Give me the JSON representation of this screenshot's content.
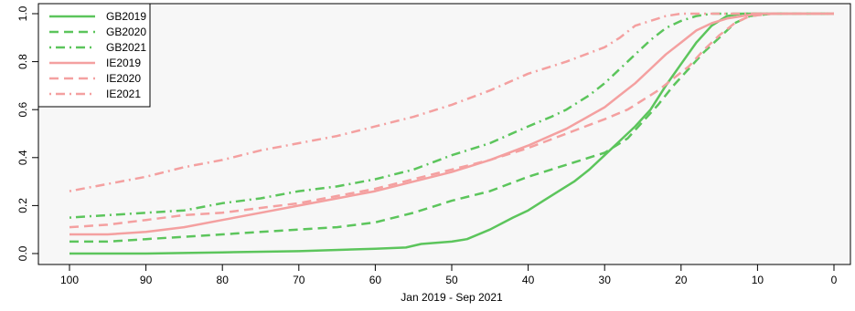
{
  "chart_data": {
    "type": "line",
    "title": "",
    "xlabel": "Jan 2019 - Sep 2021",
    "ylabel": "",
    "xlim": [
      100,
      0
    ],
    "ylim": [
      0,
      1
    ],
    "x_reversed": true,
    "xticks": [
      100,
      90,
      80,
      70,
      60,
      50,
      40,
      30,
      20,
      10,
      0
    ],
    "yticks": [
      0.0,
      0.2,
      0.4,
      0.6,
      0.8,
      1.0
    ],
    "ytick_labels": [
      "0.0",
      "0.2",
      "0.4",
      "0.6",
      "0.8",
      "1.0"
    ],
    "grid": false,
    "background": "#f7f7f7",
    "legend_position": "top-left",
    "series": [
      {
        "name": "GB2019",
        "color": "#5cc55c",
        "style": "solid",
        "x": [
          100,
          90,
          80,
          70,
          60,
          56,
          54,
          50,
          48,
          45,
          42,
          40,
          38,
          36,
          34,
          32,
          30,
          28,
          26,
          24,
          22,
          20,
          18,
          16,
          14,
          12,
          10,
          5,
          0
        ],
        "y": [
          0.0,
          0.0,
          0.005,
          0.01,
          0.02,
          0.025,
          0.04,
          0.05,
          0.06,
          0.1,
          0.15,
          0.18,
          0.22,
          0.26,
          0.3,
          0.35,
          0.41,
          0.47,
          0.53,
          0.6,
          0.7,
          0.79,
          0.88,
          0.95,
          0.99,
          1.0,
          1.0,
          1.0,
          1.0
        ]
      },
      {
        "name": "GB2020",
        "color": "#5cc55c",
        "style": "dashed",
        "x": [
          100,
          95,
          90,
          85,
          80,
          75,
          70,
          65,
          60,
          55,
          50,
          45,
          40,
          35,
          30,
          27,
          25,
          23,
          21,
          19,
          17,
          15,
          13,
          11,
          8,
          5,
          0
        ],
        "y": [
          0.05,
          0.05,
          0.06,
          0.07,
          0.08,
          0.09,
          0.1,
          0.11,
          0.13,
          0.17,
          0.22,
          0.26,
          0.32,
          0.37,
          0.42,
          0.48,
          0.55,
          0.62,
          0.7,
          0.77,
          0.84,
          0.9,
          0.96,
          0.99,
          1.0,
          1.0,
          1.0
        ]
      },
      {
        "name": "GB2021",
        "color": "#5cc55c",
        "style": "dotdash",
        "x": [
          100,
          95,
          90,
          85,
          80,
          75,
          70,
          65,
          60,
          55,
          50,
          45,
          40,
          37,
          35,
          32,
          30,
          28,
          26,
          24,
          22,
          20,
          18,
          16,
          14,
          12,
          10,
          5,
          0
        ],
        "y": [
          0.15,
          0.16,
          0.17,
          0.18,
          0.21,
          0.23,
          0.26,
          0.28,
          0.31,
          0.35,
          0.41,
          0.46,
          0.53,
          0.57,
          0.6,
          0.66,
          0.71,
          0.77,
          0.83,
          0.89,
          0.94,
          0.97,
          0.99,
          1.0,
          1.0,
          1.0,
          1.0,
          1.0,
          1.0
        ]
      },
      {
        "name": "IE2019",
        "color": "#f4a0a0",
        "style": "solid",
        "x": [
          100,
          95,
          90,
          85,
          80,
          75,
          70,
          65,
          60,
          55,
          50,
          45,
          40,
          35,
          30,
          28,
          26,
          24,
          22,
          20,
          18,
          16,
          14,
          12,
          10,
          5,
          0
        ],
        "y": [
          0.08,
          0.08,
          0.09,
          0.11,
          0.14,
          0.17,
          0.2,
          0.23,
          0.26,
          0.3,
          0.34,
          0.39,
          0.45,
          0.52,
          0.61,
          0.66,
          0.71,
          0.77,
          0.83,
          0.88,
          0.93,
          0.96,
          0.98,
          0.99,
          1.0,
          1.0,
          1.0
        ]
      },
      {
        "name": "IE2020",
        "color": "#f4a0a0",
        "style": "dashed",
        "x": [
          100,
          95,
          90,
          85,
          80,
          75,
          70,
          65,
          60,
          55,
          50,
          45,
          40,
          35,
          30,
          27,
          25,
          23,
          21,
          19,
          17,
          15,
          13,
          11,
          8,
          5,
          0
        ],
        "y": [
          0.11,
          0.12,
          0.14,
          0.16,
          0.17,
          0.19,
          0.21,
          0.24,
          0.27,
          0.31,
          0.35,
          0.39,
          0.44,
          0.5,
          0.56,
          0.6,
          0.64,
          0.68,
          0.73,
          0.78,
          0.85,
          0.91,
          0.96,
          0.99,
          1.0,
          1.0,
          1.0
        ]
      },
      {
        "name": "IE2021",
        "color": "#f4a0a0",
        "style": "dotdash",
        "x": [
          100,
          95,
          90,
          85,
          80,
          75,
          70,
          65,
          60,
          55,
          50,
          45,
          40,
          35,
          30,
          28,
          26,
          24,
          22,
          20,
          18,
          16,
          14,
          12,
          10,
          5,
          0
        ],
        "y": [
          0.26,
          0.29,
          0.32,
          0.36,
          0.39,
          0.43,
          0.46,
          0.49,
          0.53,
          0.57,
          0.62,
          0.68,
          0.75,
          0.8,
          0.86,
          0.9,
          0.95,
          0.97,
          0.99,
          1.0,
          1.0,
          1.0,
          1.0,
          1.0,
          1.0,
          1.0,
          1.0
        ]
      }
    ]
  }
}
